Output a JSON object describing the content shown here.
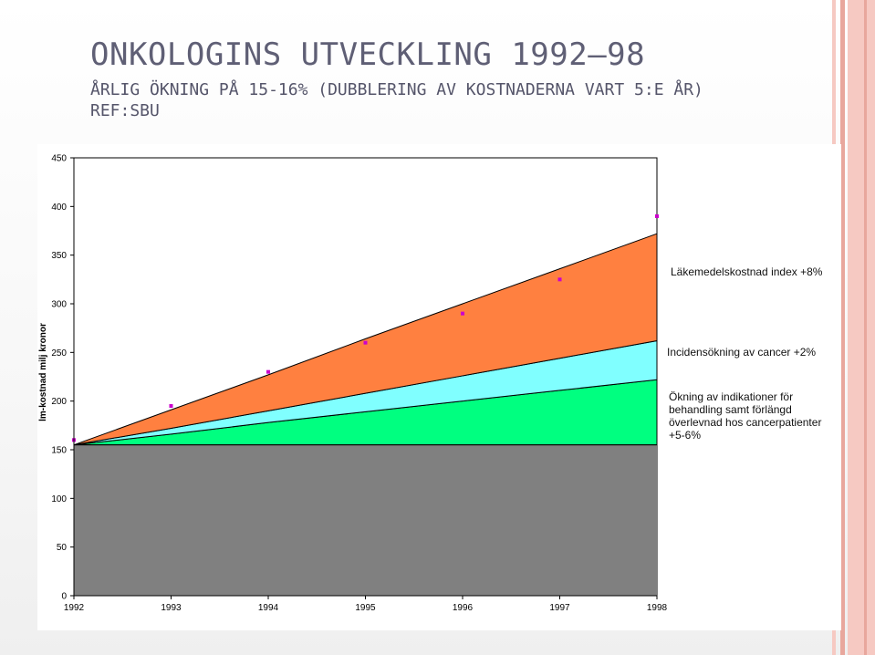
{
  "slide": {
    "title": "ONKOLOGINS UTVECKLING 1992–98",
    "subtitle": "ÅRLIG ÖKNING PÅ 15-16% (DUBBLERING AV KOSTNADERNA VART 5:E ÅR) REF:SBU"
  },
  "colors": {
    "base": "#808080",
    "indications": "#00ff80",
    "incidence": "#80ffff",
    "drug_index": "#ff8040",
    "points": "#cc00cc",
    "title": "#5f5f75",
    "stripe_pink": "#f6c9c2",
    "stripe_red": "#e8a79d"
  },
  "chart_data": {
    "type": "area",
    "stacked": true,
    "x": [
      1992,
      1993,
      1994,
      1995,
      1996,
      1997,
      1998
    ],
    "xlabel": "",
    "ylabel": "lm-kostnad milj kronor",
    "ylim": [
      0,
      450
    ],
    "yticks": [
      0,
      50,
      100,
      150,
      200,
      250,
      300,
      350,
      400,
      450
    ],
    "grid": false,
    "base_value": 155,
    "series": [
      {
        "key": "indications",
        "name": "Ökning av indikationer för behandling samt förlängd överlevnad hos cancerpatienter +5-6%",
        "values": [
          155,
          166,
          178,
          189,
          200,
          211,
          222
        ]
      },
      {
        "key": "incidence",
        "name": "Incidensökning av cancer +2%",
        "values": [
          155,
          172,
          190,
          208,
          226,
          244,
          262
        ]
      },
      {
        "key": "drug_index",
        "name": "Läkemedelskostnad index +8%",
        "values": [
          155,
          191,
          227,
          264,
          300,
          336,
          372
        ]
      }
    ],
    "points": {
      "values": [
        160,
        195,
        230,
        260,
        290,
        325,
        390
      ]
    },
    "legend": [
      {
        "key": "drug_index",
        "text": "Läkemedelskostnad index +8%"
      },
      {
        "key": "incidence",
        "text": "Incidensökning av cancer +2%"
      },
      {
        "key": "indications",
        "lines": [
          "Ökning av indikationer för",
          "behandling samt förlängd",
          "överlevnad hos cancerpatienter",
          "+5-6%"
        ]
      }
    ]
  }
}
